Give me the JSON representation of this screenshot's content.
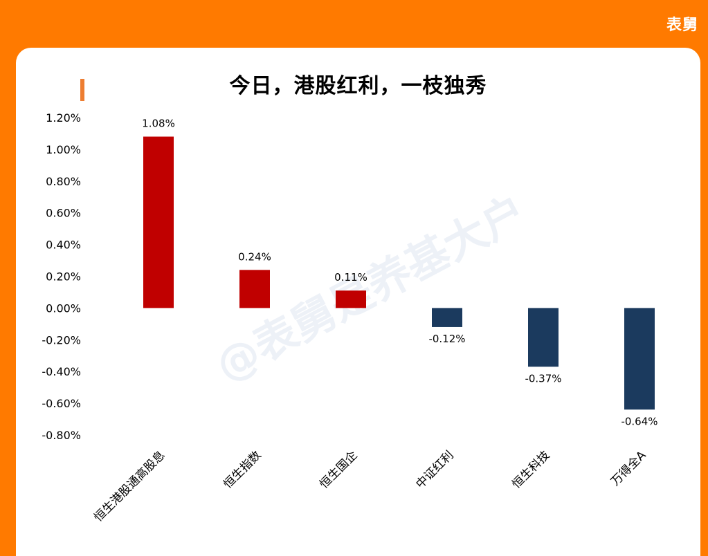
{
  "brand": "表舅",
  "watermark": "@表舅是养基大户",
  "colors": {
    "positive": "#C00000",
    "negative": "#1B3A5E",
    "frame": "#FF7A00",
    "accent": "#ED7D31"
  },
  "chart_data": {
    "type": "bar",
    "title": "今日，港股红利，一枝独秀",
    "xlabel": "",
    "ylabel": "",
    "categories": [
      "恒生港股通高股息",
      "恒生指数",
      "恒生国企",
      "中证红利",
      "恒生科技",
      "万得全A"
    ],
    "values": [
      1.08,
      0.24,
      0.11,
      -0.12,
      -0.37,
      -0.64
    ],
    "data_labels": [
      "1.08%",
      "0.24%",
      "0.11%",
      "-0.12%",
      "-0.37%",
      "-0.64%"
    ],
    "ylim": [
      -0.8,
      1.2
    ],
    "yticks": [
      1.2,
      1.0,
      0.8,
      0.6,
      0.4,
      0.2,
      0.0,
      -0.2,
      -0.4,
      -0.6,
      -0.8
    ],
    "ytick_labels": [
      "1.20%",
      "1.00%",
      "0.80%",
      "0.60%",
      "0.40%",
      "0.20%",
      "0.00%",
      "-0.20%",
      "-0.40%",
      "-0.60%",
      "-0.80%"
    ],
    "grid": false,
    "legend": "none"
  }
}
